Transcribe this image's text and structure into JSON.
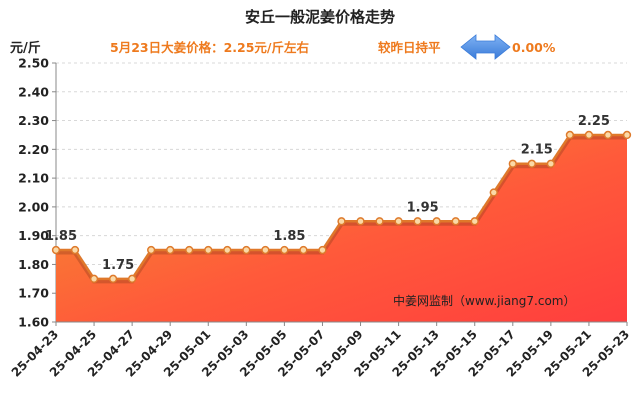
{
  "chart_data": {
    "type": "area",
    "title": "安丘一般泥姜价格走势",
    "subtitle": "5月23日大姜价格：2.25元/斤左右",
    "trend_label": "较昨日持平",
    "change_value": "0.00%",
    "y_unit": "元/斤",
    "watermark": "中姜网监制（www.jiang7.com）",
    "ylim": [
      1.6,
      2.5
    ],
    "y_ticks": [
      "1.60",
      "1.70",
      "1.80",
      "1.90",
      "2.00",
      "2.10",
      "2.20",
      "2.30",
      "2.40",
      "2.50"
    ],
    "x_tick_labels": [
      "25-04-23",
      "25-04-25",
      "25-04-27",
      "25-04-29",
      "25-05-01",
      "25-05-03",
      "25-05-05",
      "25-05-07",
      "25-05-09",
      "25-05-11",
      "25-05-13",
      "25-05-15",
      "25-05-17",
      "25-05-19",
      "25-05-21",
      "25-05-23"
    ],
    "x": [
      "25-04-23",
      "25-04-24",
      "25-04-25",
      "25-04-26",
      "25-04-27",
      "25-04-28",
      "25-04-29",
      "25-04-30",
      "25-05-01",
      "25-05-02",
      "25-05-03",
      "25-05-04",
      "25-05-05",
      "25-05-06",
      "25-05-07",
      "25-05-08",
      "25-05-09",
      "25-05-10",
      "25-05-11",
      "25-05-12",
      "25-05-13",
      "25-05-14",
      "25-05-15",
      "25-05-16",
      "25-05-17",
      "25-05-18",
      "25-05-19",
      "25-05-20",
      "25-05-21",
      "25-05-22",
      "25-05-23"
    ],
    "values": [
      1.85,
      1.85,
      1.75,
      1.75,
      1.75,
      1.85,
      1.85,
      1.85,
      1.85,
      1.85,
      1.85,
      1.85,
      1.85,
      1.85,
      1.85,
      1.95,
      1.95,
      1.95,
      1.95,
      1.95,
      1.95,
      1.95,
      1.95,
      2.05,
      2.15,
      2.15,
      2.15,
      2.25,
      2.25,
      2.25,
      2.25
    ],
    "data_labels": [
      {
        "index": 0,
        "text": "1.85"
      },
      {
        "index": 3,
        "text": "1.75"
      },
      {
        "index": 12,
        "text": "1.85"
      },
      {
        "index": 19,
        "text": "1.95"
      },
      {
        "index": 25,
        "text": "2.15"
      },
      {
        "index": 28,
        "text": "2.25"
      }
    ],
    "grid": true,
    "colors": {
      "area_top": "#ff3e3e",
      "area_bottom": "#f2962e",
      "line": "#e0782a",
      "marker_fill": "#fbd9a6",
      "marker_stroke": "#de7a2c",
      "accent_text": "#ee7a1e",
      "arrow": "#4f8fe6"
    }
  }
}
